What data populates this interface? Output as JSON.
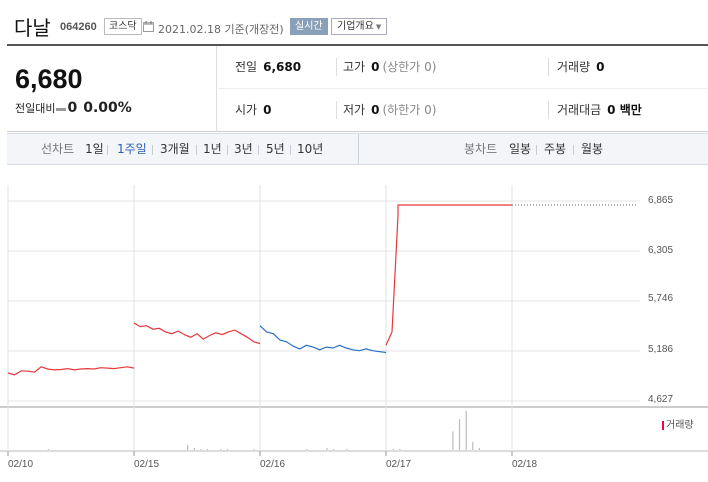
{
  "header": {
    "company": "다날",
    "code": "064260",
    "market": "코스닥",
    "date": "2021.02.18 기준(개장전)",
    "realtime_label": "실시간",
    "overview_label": "기업개요"
  },
  "summary": {
    "price": "6,680",
    "diff_label": "전일대비",
    "diff_value": "0",
    "diff_pct": "0.00%",
    "prev_label": "전일",
    "prev_value": "6,680",
    "high_label": "고가",
    "high_value": "0",
    "high_sub": "(상한가 0)",
    "volume_label": "거래량",
    "volume_value": "0",
    "open_label": "시가",
    "open_value": "0",
    "low_label": "저가",
    "low_value": "0",
    "low_sub": "(하한가 0)",
    "amount_label": "거래대금",
    "amount_value": "0 백만"
  },
  "periods": {
    "line_label": "선차트",
    "line_items": [
      "1일",
      "1주일",
      "3개월",
      "1년",
      "3년",
      "5년",
      "10년"
    ],
    "active": "1주일",
    "candle_label": "봉차트",
    "candle_items": [
      "일봉",
      "주봉",
      "월봉"
    ]
  },
  "colors": {
    "up": "#e5393b",
    "down": "#2b6fc2",
    "accent": "#2e5fb3"
  },
  "icons": {
    "calendar": "calendar-icon",
    "dropdown": "triangle-down-icon"
  },
  "chart_data": {
    "type": "line",
    "y_ticks": [
      "6,865",
      "6,305",
      "5,746",
      "5,186",
      "4,627"
    ],
    "x_ticks": [
      "02/10",
      "02/15",
      "02/16",
      "02/17",
      "02/18"
    ],
    "ylim": [
      4627,
      6865
    ],
    "volume_legend": "거래량",
    "series": [
      {
        "segment": "02/10",
        "color": "up",
        "values": [
          4940,
          4920,
          4965,
          4960,
          4950,
          5010,
          4985,
          4975,
          4980,
          4990,
          4975,
          4985,
          4990,
          4985,
          5000,
          4995,
          4990,
          5000,
          5010,
          4995
        ]
      },
      {
        "segment": "02/15",
        "color": "up",
        "values": [
          5500,
          5460,
          5470,
          5430,
          5440,
          5400,
          5380,
          5410,
          5370,
          5340,
          5380,
          5320,
          5360,
          5390,
          5370,
          5400,
          5420,
          5380,
          5340,
          5290,
          5270
        ]
      },
      {
        "segment": "02/16",
        "color": "down",
        "values": [
          5470,
          5400,
          5380,
          5310,
          5290,
          5240,
          5210,
          5250,
          5230,
          5200,
          5230,
          5220,
          5250,
          5220,
          5200,
          5190,
          5210,
          5190,
          5180,
          5170
        ]
      },
      {
        "segment": "02/17",
        "color": "up",
        "values": [
          5250,
          5400,
          6700,
          6820,
          6820,
          6820,
          6820,
          6820,
          6820,
          6820,
          6820,
          6820,
          6820,
          6820,
          6820,
          6820,
          6820,
          6820
        ]
      }
    ],
    "volume": [
      0,
      0,
      0,
      0,
      0,
      0,
      1,
      0,
      0,
      0,
      0,
      0,
      0,
      0,
      0,
      0,
      0,
      0,
      0,
      0,
      0,
      0,
      0,
      0,
      0,
      0,
      0,
      5,
      2,
      1,
      1,
      0,
      1,
      1,
      0,
      0,
      0,
      1,
      0,
      0,
      0,
      0,
      0,
      0,
      0,
      1,
      0,
      0,
      2,
      1,
      0,
      1,
      0,
      0,
      0,
      0,
      0,
      0,
      1,
      1,
      0,
      0,
      0,
      0,
      0,
      0,
      0,
      18,
      30,
      38,
      8,
      2,
      0,
      0,
      0,
      0
    ]
  }
}
